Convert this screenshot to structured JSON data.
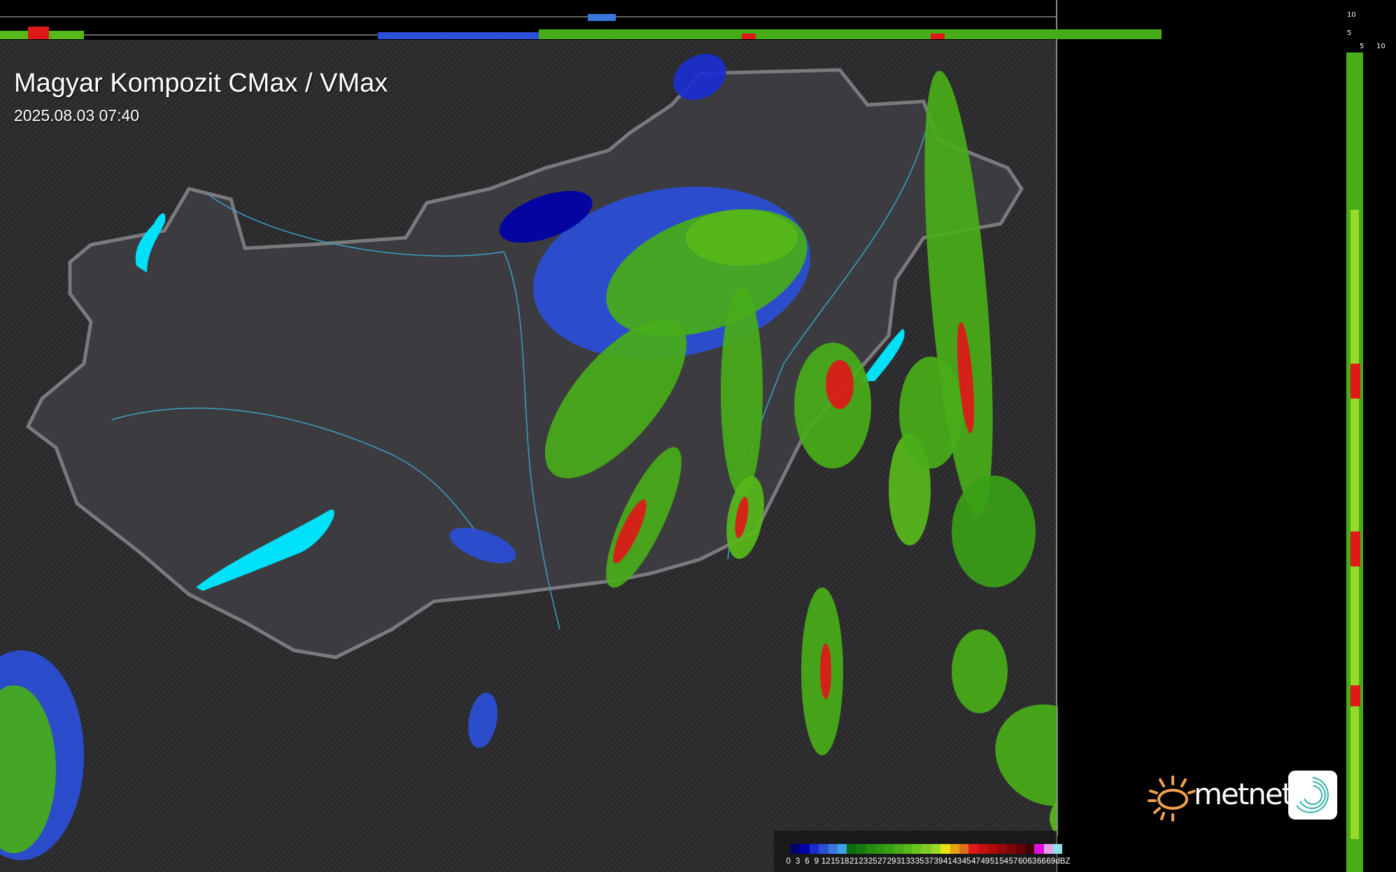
{
  "header": {
    "title": "Magyar Kompozit CMax / VMax",
    "timestamp": "2025.08.03 07:40"
  },
  "profile_axes": {
    "top_ticks": [
      "10",
      "5"
    ],
    "right_ticks": [
      "5",
      "10"
    ]
  },
  "legend": {
    "unit": "dBZ",
    "labels": [
      "0",
      "3",
      "6",
      "9",
      "12",
      "15",
      "18",
      "21",
      "23",
      "25",
      "27",
      "29",
      "31",
      "33",
      "35",
      "37",
      "39",
      "41",
      "43",
      "45",
      "47",
      "49",
      "51",
      "54",
      "57",
      "60",
      "63",
      "66",
      "69"
    ],
    "colors": [
      "#00006e",
      "#0000a8",
      "#1a2ed0",
      "#2a4fd8",
      "#3a78de",
      "#40a0e8",
      "#0e6e0e",
      "#177a10",
      "#248a12",
      "#2e9614",
      "#38a016",
      "#48ac18",
      "#58b81a",
      "#6cc41e",
      "#80cc22",
      "#98d826",
      "#e8e010",
      "#e8a010",
      "#e07018",
      "#e01818",
      "#c81010",
      "#b00c0c",
      "#980808",
      "#800606",
      "#640404",
      "#400202",
      "#e010e0",
      "#e8a0e8",
      "#90e0e8"
    ]
  },
  "logo": {
    "text": "metnet",
    "sun_color": "#f0a050",
    "swirl_color": "#30b0a8"
  },
  "colors": {
    "country_fill": "#3c3c40",
    "border": "#7a7a7e",
    "lakes": "#00e0f8",
    "rivers": "#3aa0c0",
    "background": "#2a2a2c"
  }
}
